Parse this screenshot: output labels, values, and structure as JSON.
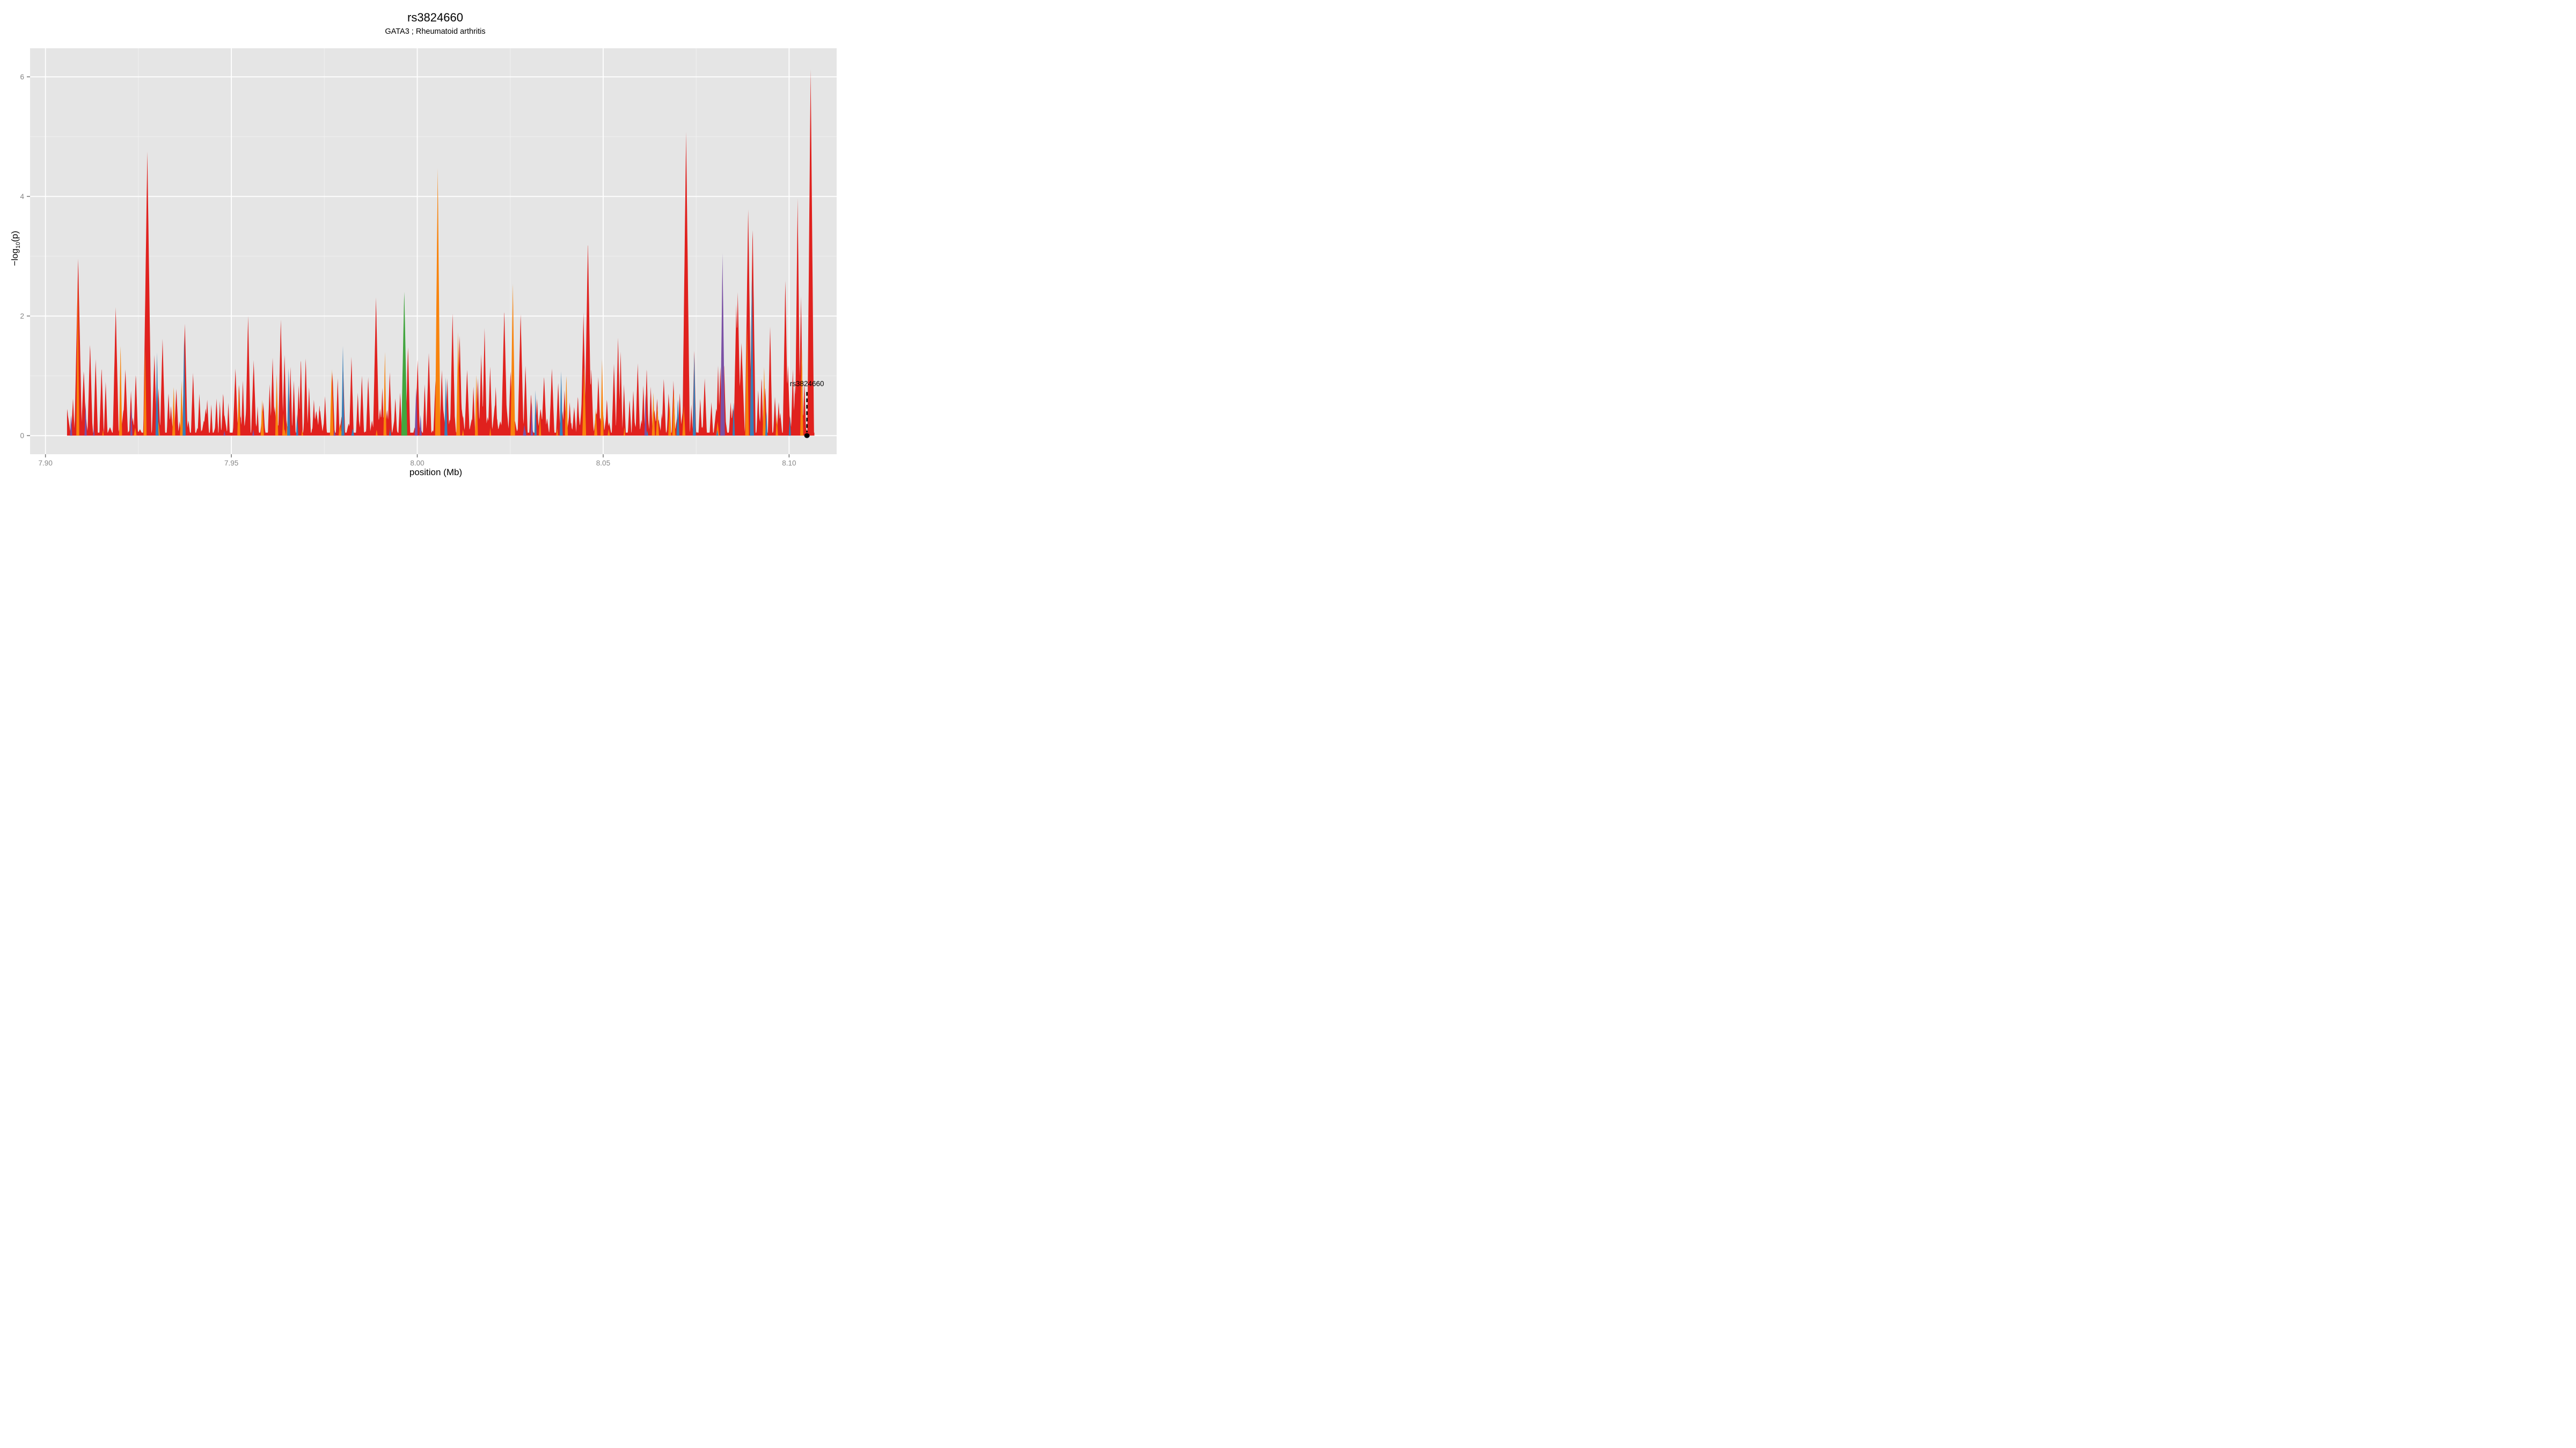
{
  "title": "rs3824660",
  "subtitle": "GATA3 ; Rheumatoid arthritis",
  "annotation": {
    "label": "rs3824660",
    "mb": 8.1048,
    "point_value": 0,
    "line_top_value": 0.73,
    "label_value": 0.83
  },
  "colors": {
    "panel_bg": "#E5E5E5",
    "grid_major": "#FFFFFF",
    "grid_minor": "#F2F2F2",
    "tick_mark": "#7A7A7A",
    "tick_label": "#868686",
    "axis_title": "#000000",
    "annotation": "#000000",
    "red": "#E0211E",
    "orange": "#F8830C",
    "blue": "#377EB8",
    "purple": "#7A50A5",
    "green": "#42A63F"
  },
  "chart_data": {
    "type": "area",
    "title": "rs3824660",
    "subtitle": "GATA3 ; Rheumatoid arthritis",
    "xlabel": "position (Mb)",
    "ylabel": "-log10(p)",
    "xlim": [
      7.8959,
      8.1129
    ],
    "ylim": [
      -0.31,
      6.47
    ],
    "x_major_ticks": [
      {
        "v": 7.9,
        "label": "7.90"
      },
      {
        "v": 7.95,
        "label": "7.95"
      },
      {
        "v": 8.0,
        "label": "8.00"
      },
      {
        "v": 8.05,
        "label": "8.05"
      },
      {
        "v": 8.1,
        "label": "8.10"
      }
    ],
    "x_minor_ticks": [
      7.925,
      7.975,
      8.025,
      8.075
    ],
    "y_major_ticks": [
      {
        "v": 0,
        "label": "0"
      },
      {
        "v": 2,
        "label": "2"
      },
      {
        "v": 4,
        "label": "4"
      },
      {
        "v": 6,
        "label": "6"
      }
    ],
    "y_minor_ticks": [
      1,
      3,
      5
    ],
    "data_range": [
      7.9058,
      8.1068
    ],
    "series": [
      {
        "name": "red",
        "color_key": "red",
        "baseline": 0.05,
        "noise": {
          "seed": 7,
          "count": 300,
          "h_min": 0.07,
          "h_max": 0.5,
          "hw_min": 0.00025,
          "hw_max": 0.0009
        },
        "peaks": [
          [
            7.9059,
            0.45,
            0.0005
          ],
          [
            7.9074,
            0.62,
            0.0005
          ],
          [
            7.9088,
            2.96,
            0.001
          ],
          [
            7.9103,
            1.1,
            0.0007
          ],
          [
            7.912,
            1.55,
            0.0007
          ],
          [
            7.9135,
            1.28,
            0.0006
          ],
          [
            7.9151,
            1.15,
            0.0006
          ],
          [
            7.9162,
            0.9,
            0.0005
          ],
          [
            7.9189,
            2.15,
            0.0008
          ],
          [
            7.9215,
            1.12,
            0.0007
          ],
          [
            7.923,
            0.75,
            0.0005
          ],
          [
            7.9243,
            1.05,
            0.0006
          ],
          [
            7.9274,
            4.75,
            0.0011
          ],
          [
            7.9293,
            1.35,
            0.0007
          ],
          [
            7.9304,
            0.82,
            0.0005
          ],
          [
            7.9315,
            1.62,
            0.0007
          ],
          [
            7.9331,
            0.72,
            0.0005
          ],
          [
            7.9352,
            0.78,
            0.0006
          ],
          [
            7.9375,
            1.9,
            0.0007
          ],
          [
            7.9397,
            1.05,
            0.0006
          ],
          [
            7.9414,
            0.7,
            0.0005
          ],
          [
            7.9435,
            0.6,
            0.0005
          ],
          [
            7.9446,
            0.52,
            0.0004
          ],
          [
            7.946,
            0.62,
            0.0005
          ],
          [
            7.9469,
            0.58,
            0.0004
          ],
          [
            7.9478,
            0.73,
            0.0005
          ],
          [
            7.9492,
            0.55,
            0.0004
          ],
          [
            7.9511,
            1.12,
            0.0007
          ],
          [
            7.9521,
            0.85,
            0.0005
          ],
          [
            7.9531,
            0.92,
            0.0005
          ],
          [
            7.9545,
            2.0,
            0.0007
          ],
          [
            7.956,
            1.26,
            0.0007
          ],
          [
            7.9586,
            0.56,
            0.0005
          ],
          [
            7.9603,
            0.86,
            0.0005
          ],
          [
            7.9611,
            1.3,
            0.0006
          ],
          [
            7.9633,
            1.94,
            0.0007
          ],
          [
            7.9643,
            1.35,
            0.0006
          ],
          [
            7.9659,
            1.15,
            0.0005
          ],
          [
            7.9668,
            0.92,
            0.0005
          ],
          [
            7.9681,
            0.84,
            0.0005
          ],
          [
            7.9687,
            1.3,
            0.0005
          ],
          [
            7.97,
            1.29,
            0.0006
          ],
          [
            7.9709,
            0.82,
            0.0005
          ],
          [
            7.9722,
            0.6,
            0.0005
          ],
          [
            7.9737,
            0.52,
            0.0005
          ],
          [
            7.9752,
            0.66,
            0.0005
          ],
          [
            7.9772,
            1.06,
            0.0006
          ],
          [
            7.9786,
            0.96,
            0.0005
          ],
          [
            7.9801,
            1.1,
            0.0005
          ],
          [
            7.9823,
            1.32,
            0.0006
          ],
          [
            7.984,
            0.72,
            0.0005
          ],
          [
            7.9851,
            1.0,
            0.0006
          ],
          [
            7.9868,
            0.98,
            0.0006
          ],
          [
            7.9889,
            2.31,
            0.0008
          ],
          [
            7.9906,
            0.8,
            0.0005
          ],
          [
            7.9926,
            1.06,
            0.0006
          ],
          [
            7.9941,
            0.64,
            0.0005
          ],
          [
            7.9954,
            0.72,
            0.0005
          ],
          [
            7.9975,
            1.51,
            0.0006
          ],
          [
            8.0001,
            1.27,
            0.0006
          ],
          [
            8.002,
            0.86,
            0.0005
          ],
          [
            8.0031,
            1.38,
            0.0007
          ],
          [
            8.0049,
            0.92,
            0.0006
          ],
          [
            8.0066,
            1.1,
            0.0006
          ],
          [
            8.0081,
            0.96,
            0.0005
          ],
          [
            8.0095,
            2.04,
            0.0007
          ],
          [
            8.0114,
            1.67,
            0.0007
          ],
          [
            8.0134,
            1.1,
            0.0007
          ],
          [
            8.0151,
            0.82,
            0.0005
          ],
          [
            8.0163,
            0.96,
            0.0005
          ],
          [
            8.0172,
            1.36,
            0.0006
          ],
          [
            8.0181,
            1.8,
            0.0006
          ],
          [
            8.0196,
            1.16,
            0.0006
          ],
          [
            8.0211,
            0.82,
            0.0005
          ],
          [
            8.0234,
            2.1,
            0.0008
          ],
          [
            8.0251,
            1.1,
            0.0006
          ],
          [
            8.0278,
            2.05,
            0.0008
          ],
          [
            8.0291,
            1.17,
            0.0006
          ],
          [
            8.0306,
            0.72,
            0.0005
          ],
          [
            8.0322,
            0.62,
            0.0005
          ],
          [
            8.0341,
            1.0,
            0.0007
          ],
          [
            8.0362,
            1.12,
            0.0007
          ],
          [
            8.0379,
            0.88,
            0.0006
          ],
          [
            8.0396,
            0.76,
            0.0005
          ],
          [
            8.041,
            0.56,
            0.0005
          ],
          [
            8.0422,
            0.48,
            0.0006
          ],
          [
            8.0432,
            0.68,
            0.0005
          ],
          [
            8.0447,
            2.06,
            0.0007
          ],
          [
            8.0459,
            3.25,
            0.0009
          ],
          [
            8.0468,
            1.12,
            0.0006
          ],
          [
            8.0487,
            0.98,
            0.0006
          ],
          [
            8.051,
            0.62,
            0.0005
          ],
          [
            8.0529,
            1.2,
            0.0006
          ],
          [
            8.054,
            1.64,
            0.0006
          ],
          [
            8.0547,
            1.42,
            0.0005
          ],
          [
            8.0556,
            0.86,
            0.0005
          ],
          [
            8.0571,
            0.62,
            0.0005
          ],
          [
            8.0581,
            0.76,
            0.0005
          ],
          [
            8.0593,
            1.21,
            0.0006
          ],
          [
            8.0608,
            0.84,
            0.0005
          ],
          [
            8.0617,
            1.13,
            0.0005
          ],
          [
            8.0628,
            0.82,
            0.0005
          ],
          [
            8.0645,
            0.62,
            0.0005
          ],
          [
            8.0663,
            0.96,
            0.0006
          ],
          [
            8.0676,
            0.72,
            0.0005
          ],
          [
            8.0689,
            0.92,
            0.0005
          ],
          [
            8.0706,
            0.72,
            0.0005
          ],
          [
            8.0723,
            5.08,
            0.001
          ],
          [
            8.0737,
            0.52,
            0.0004
          ],
          [
            8.0745,
            1.46,
            0.0005
          ],
          [
            8.0761,
            0.62,
            0.0005
          ],
          [
            8.0773,
            0.96,
            0.0006
          ],
          [
            8.0791,
            0.56,
            0.0005
          ],
          [
            8.0809,
            1.17,
            0.0005
          ],
          [
            8.0815,
            1.15,
            0.0005
          ],
          [
            8.0825,
            1.2,
            0.0006
          ],
          [
            8.0843,
            0.56,
            0.0005
          ],
          [
            8.0858,
            2.2,
            0.0007
          ],
          [
            8.0862,
            2.4,
            0.0008
          ],
          [
            8.0872,
            1.55,
            0.0009
          ],
          [
            8.089,
            3.78,
            0.0009
          ],
          [
            8.0902,
            3.53,
            0.0008
          ],
          [
            8.0917,
            0.76,
            0.0005
          ],
          [
            8.0926,
            1.0,
            0.0005
          ],
          [
            8.0936,
            0.82,
            0.0005
          ],
          [
            8.0949,
            1.84,
            0.0006
          ],
          [
            8.0962,
            0.66,
            0.0005
          ],
          [
            8.0972,
            0.56,
            0.0005
          ],
          [
            8.099,
            2.62,
            0.0007
          ],
          [
            8.0997,
            1.2,
            0.0006
          ],
          [
            8.101,
            1.11,
            0.0005
          ],
          [
            8.1016,
            0.86,
            0.0005
          ],
          [
            8.1023,
            3.97,
            0.0007
          ],
          [
            8.1032,
            2.33,
            0.0006
          ],
          [
            8.1041,
            0.9,
            0.0005
          ],
          [
            8.1058,
            6.16,
            0.0009
          ]
        ]
      },
      {
        "name": "orange",
        "color_key": "orange",
        "baseline": 0,
        "noise": {
          "seed": 13,
          "count": 16,
          "h_min": 0.1,
          "h_max": 0.45,
          "hw_min": 0.0002,
          "hw_max": 0.0005
        },
        "peaks": [
          [
            7.9087,
            2.62,
            0.0004
          ],
          [
            7.9202,
            1.58,
            0.0004
          ],
          [
            7.9268,
            1.45,
            0.0004
          ],
          [
            7.9345,
            0.85,
            0.0004
          ],
          [
            7.9366,
            0.92,
            0.0004
          ],
          [
            7.952,
            0.85,
            0.0004
          ],
          [
            7.9583,
            0.6,
            0.0004
          ],
          [
            7.9622,
            1.03,
            0.0004
          ],
          [
            7.977,
            1.11,
            0.0005
          ],
          [
            7.9799,
            0.62,
            0.0004
          ],
          [
            7.9913,
            1.4,
            0.0004
          ],
          [
            8.0055,
            4.47,
            0.0007
          ],
          [
            8.011,
            1.73,
            0.0005
          ],
          [
            8.0159,
            1.05,
            0.0004
          ],
          [
            8.0257,
            2.54,
            0.0006
          ],
          [
            8.0318,
            0.32,
            0.0003
          ],
          [
            8.033,
            0.36,
            0.0003
          ],
          [
            8.0401,
            1.04,
            0.0004
          ],
          [
            8.0449,
            1.2,
            0.0005
          ],
          [
            8.048,
            0.46,
            0.0004
          ],
          [
            8.0497,
            1.28,
            0.0004
          ],
          [
            8.0635,
            0.72,
            0.0004
          ],
          [
            8.0646,
            0.5,
            0.0004
          ],
          [
            8.0679,
            0.56,
            0.0004
          ],
          [
            8.069,
            0.78,
            0.0004
          ],
          [
            8.0717,
            0.5,
            0.0004
          ],
          [
            8.0887,
            1.84,
            0.0005
          ],
          [
            8.0933,
            1.15,
            0.0004
          ],
          [
            8.0967,
            0.36,
            0.0003
          ],
          [
            8.1034,
            1.55,
            0.0004
          ]
        ]
      },
      {
        "name": "blue",
        "color_key": "blue",
        "baseline": 0,
        "noise": {
          "seed": 21,
          "count": 6,
          "h_min": 0.08,
          "h_max": 0.3,
          "hw_min": 0.0002,
          "hw_max": 0.0004
        },
        "peaks": [
          [
            7.93,
            1.4,
            0.0004
          ],
          [
            7.9373,
            1.68,
            0.0004
          ],
          [
            7.9654,
            1.13,
            0.0004
          ],
          [
            7.9677,
            0.36,
            0.0003
          ],
          [
            7.98,
            1.5,
            0.0004
          ],
          [
            8.0077,
            1.0,
            0.0004
          ],
          [
            8.0318,
            0.76,
            0.0003
          ],
          [
            8.0387,
            1.1,
            0.0004
          ],
          [
            8.0701,
            0.64,
            0.0004
          ],
          [
            8.0745,
            1.42,
            0.0004
          ],
          [
            8.0851,
            0.6,
            0.0003
          ],
          [
            8.09,
            2.69,
            0.0005
          ],
          [
            8.0939,
            0.42,
            0.0003
          ],
          [
            8.1002,
            0.34,
            0.0003
          ]
        ]
      },
      {
        "name": "purple",
        "color_key": "purple",
        "baseline": 0,
        "noise": {
          "seed": 29,
          "count": 5,
          "h_min": 0.08,
          "h_max": 0.28,
          "hw_min": 0.0002,
          "hw_max": 0.0004
        },
        "peaks": [
          [
            7.9069,
            0.36,
            0.0003
          ],
          [
            7.9108,
            0.56,
            0.0003
          ],
          [
            7.9231,
            0.5,
            0.0003
          ],
          [
            7.9997,
            0.8,
            0.0004
          ],
          [
            8.0009,
            0.36,
            0.0003
          ],
          [
            8.0308,
            0.56,
            0.0003
          ],
          [
            8.0614,
            0.7,
            0.0003
          ],
          [
            8.0821,
            3.05,
            0.0006
          ]
        ]
      },
      {
        "name": "green",
        "color_key": "green",
        "baseline": 0,
        "noise": {
          "seed": 35,
          "count": 0,
          "h_min": 0,
          "h_max": 0,
          "hw_min": 0.0002,
          "hw_max": 0.0004
        },
        "peaks": [
          [
            7.9965,
            2.46,
            0.0008
          ]
        ]
      }
    ]
  },
  "y_axis_label_parts": {
    "pre": "−log",
    "sub": "10",
    "post": "(p)"
  },
  "x_axis_label": "position (Mb)"
}
